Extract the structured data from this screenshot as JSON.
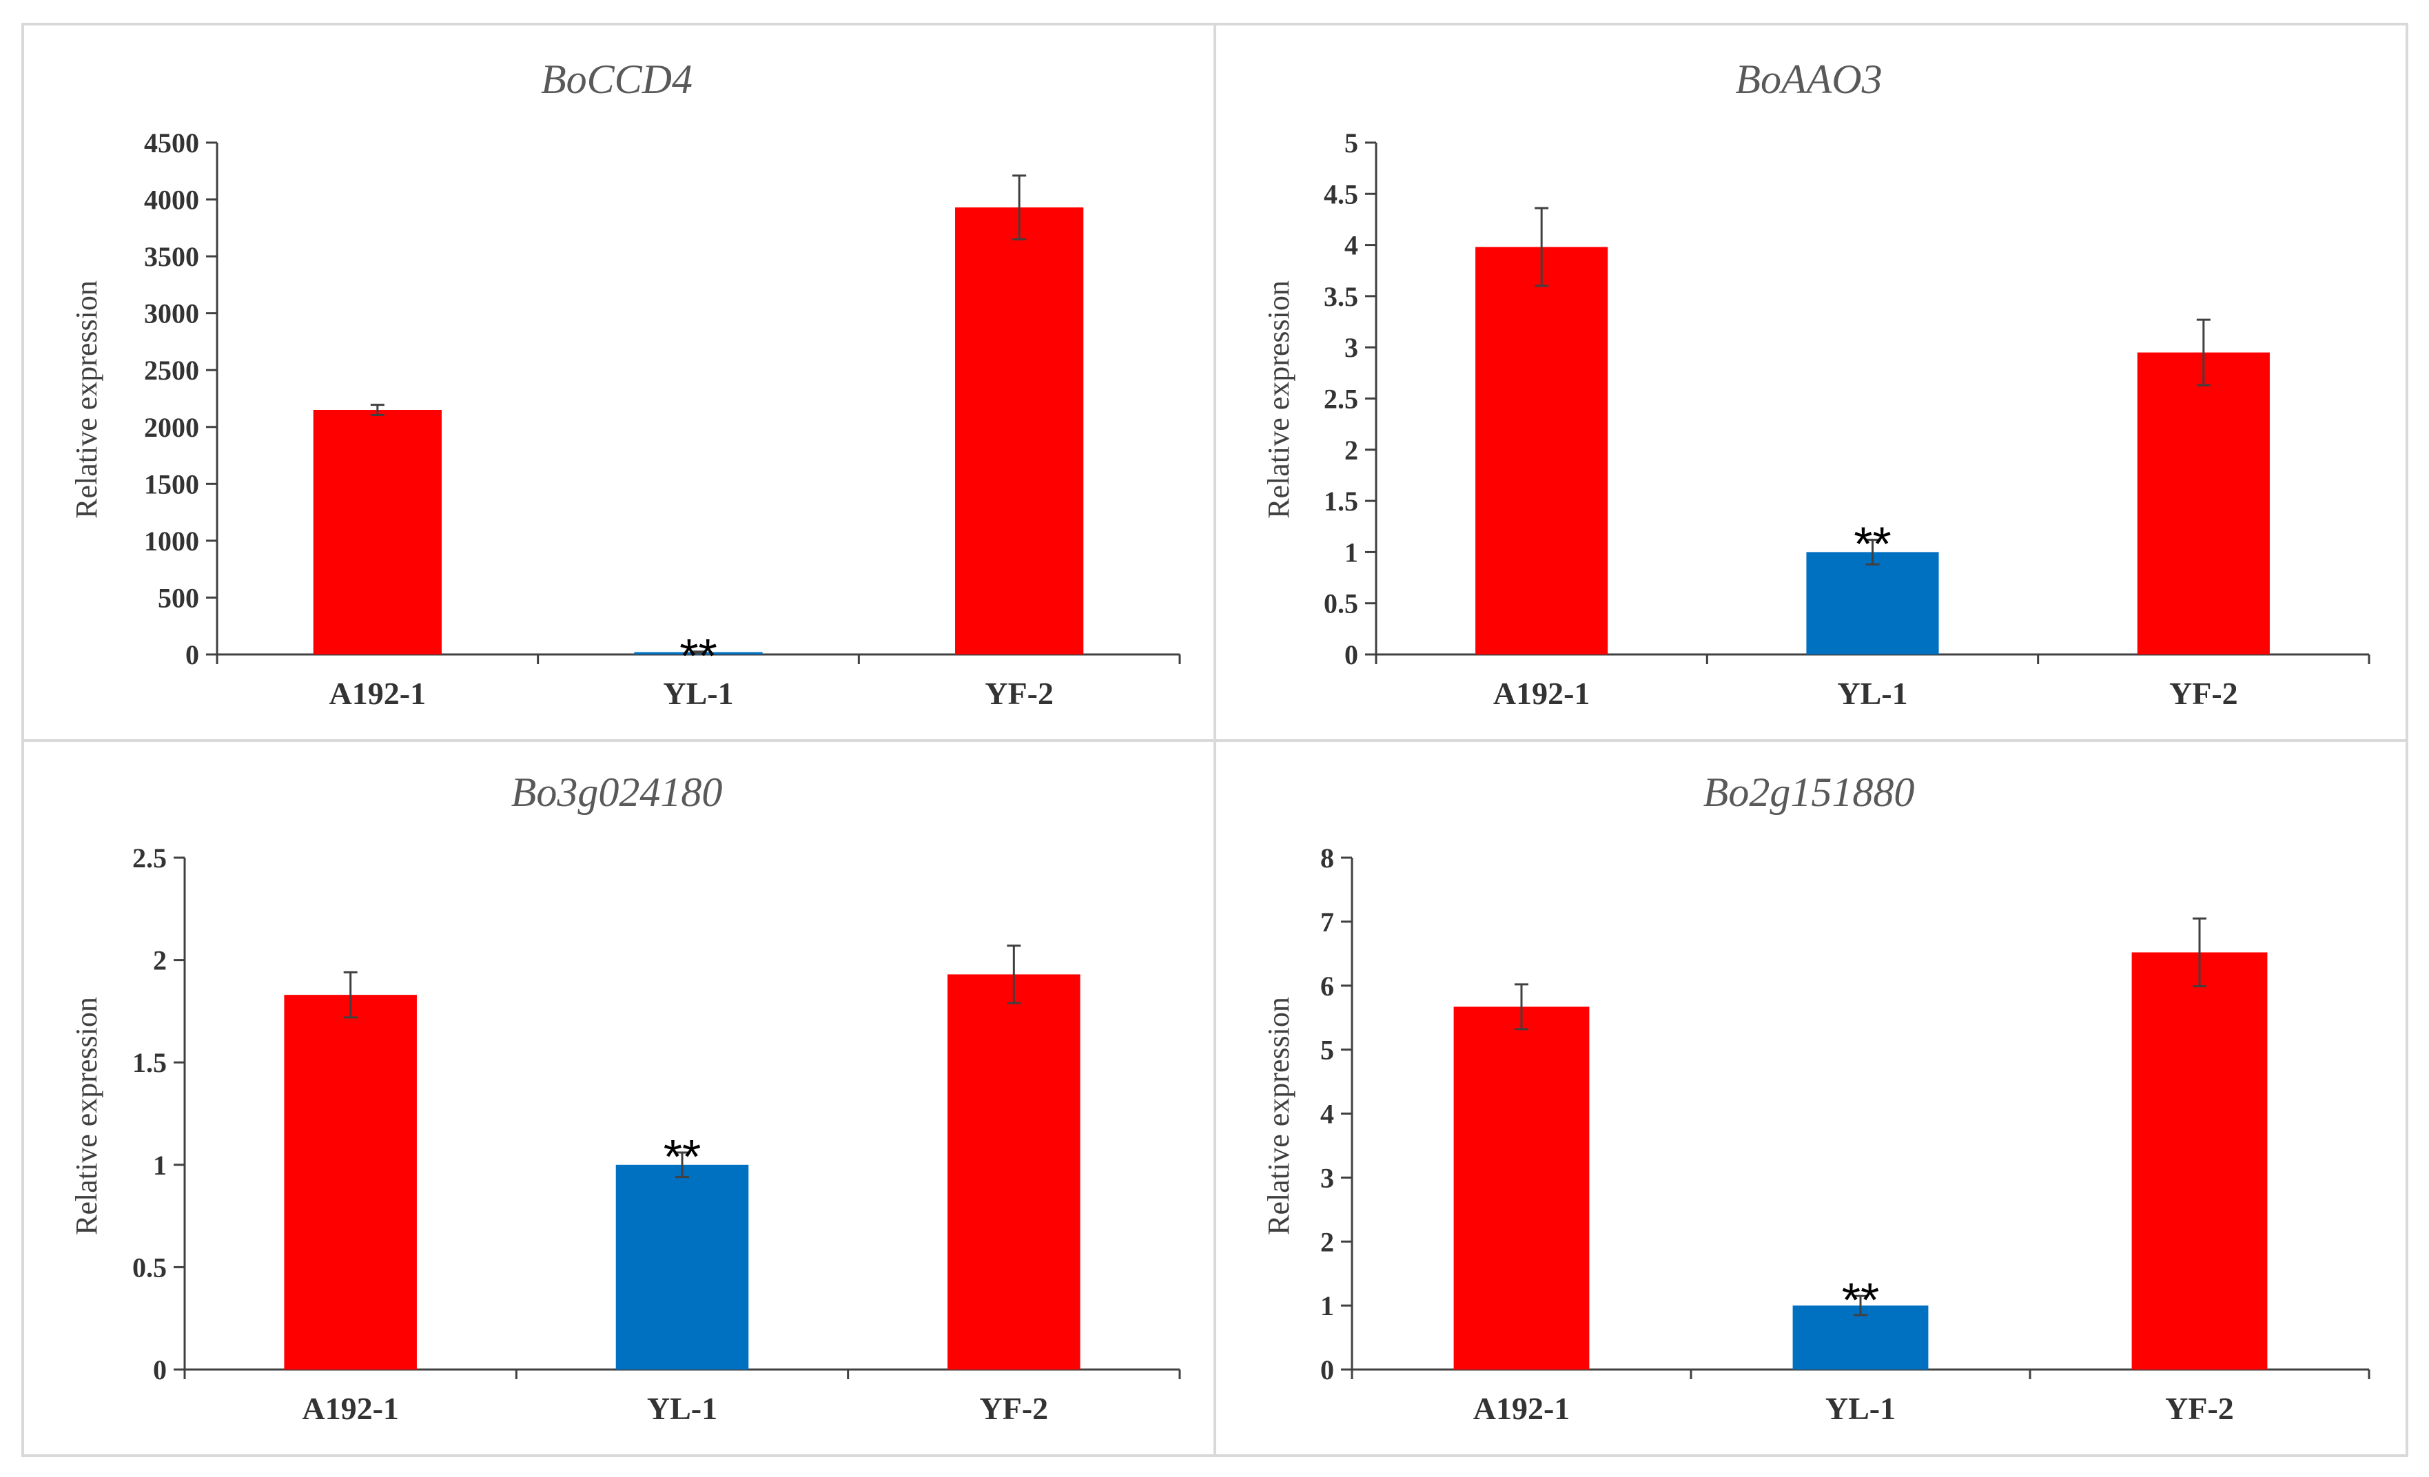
{
  "colors": {
    "control": "#ff0000",
    "mutant": "#0070c0",
    "axis": "#404040",
    "border": "#d9d9d9",
    "error_bar": "#404040"
  },
  "chart_data": [
    {
      "type": "bar",
      "title": "BoCCD4",
      "ylabel": "Relative expression",
      "categories": [
        "A192-1",
        "YL-1",
        "YF-2"
      ],
      "values": [
        2150,
        20,
        3930
      ],
      "errors": [
        45,
        5,
        280
      ],
      "bar_colors": [
        "#ff0000",
        "#0070c0",
        "#ff0000"
      ],
      "significance": [
        "",
        "**",
        ""
      ],
      "ylim": [
        0,
        4500
      ],
      "yticks": [
        "0",
        "500",
        "1000",
        "1500",
        "2000",
        "2500",
        "3000",
        "3500",
        "4000",
        "4500"
      ]
    },
    {
      "type": "bar",
      "title": "BoAAO3",
      "ylabel": "Relative expression",
      "categories": [
        "A192-1",
        "YL-1",
        "YF-2"
      ],
      "values": [
        3.98,
        1.0,
        2.95
      ],
      "errors": [
        0.38,
        0.12,
        0.32
      ],
      "bar_colors": [
        "#ff0000",
        "#0070c0",
        "#ff0000"
      ],
      "significance": [
        "",
        "**",
        ""
      ],
      "ylim": [
        0,
        5
      ],
      "yticks": [
        "0",
        "0.5",
        "1",
        "1.5",
        "2",
        "2.5",
        "3",
        "3.5",
        "4",
        "4.5",
        "5"
      ]
    },
    {
      "type": "bar",
      "title": "Bo3g024180",
      "ylabel": "Relative expression",
      "categories": [
        "A192-1",
        "YL-1",
        "YF-2"
      ],
      "values": [
        1.83,
        1.0,
        1.93
      ],
      "errors": [
        0.11,
        0.06,
        0.14
      ],
      "bar_colors": [
        "#ff0000",
        "#0070c0",
        "#ff0000"
      ],
      "significance": [
        "",
        "**",
        ""
      ],
      "ylim": [
        0,
        2.5
      ],
      "yticks": [
        "0",
        "0.5",
        "1",
        "1.5",
        "2",
        "2.5"
      ]
    },
    {
      "type": "bar",
      "title": "Bo2g151880",
      "ylabel": "Relative expression",
      "categories": [
        "A192-1",
        "YL-1",
        "YF-2"
      ],
      "values": [
        5.67,
        1.0,
        6.52
      ],
      "errors": [
        0.35,
        0.15,
        0.53
      ],
      "bar_colors": [
        "#ff0000",
        "#0070c0",
        "#ff0000"
      ],
      "significance": [
        "",
        "**",
        ""
      ],
      "ylim": [
        0,
        8
      ],
      "yticks": [
        "0",
        "1",
        "2",
        "3",
        "4",
        "5",
        "6",
        "7",
        "8"
      ]
    }
  ]
}
